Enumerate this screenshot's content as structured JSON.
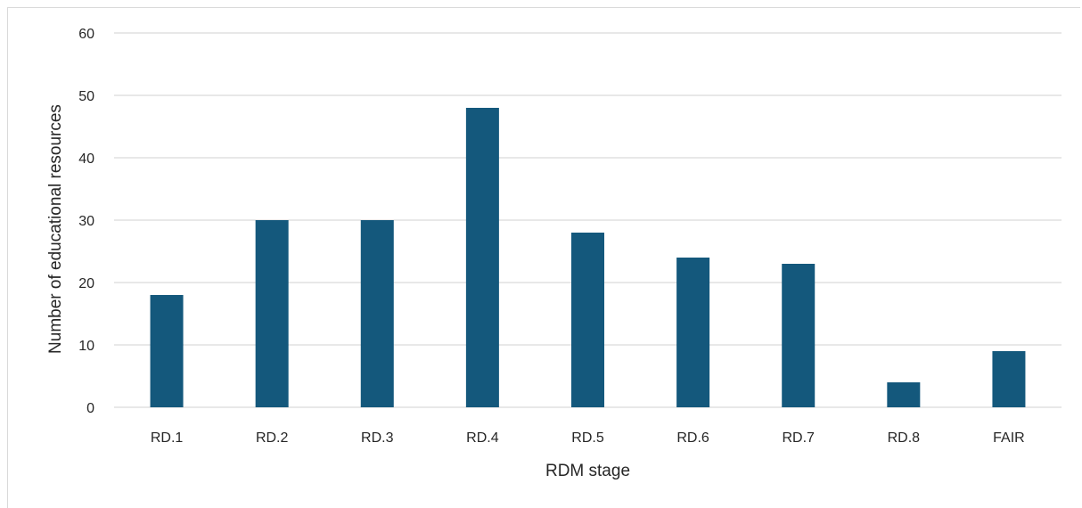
{
  "chart_data": {
    "type": "bar",
    "title": "",
    "xlabel": "RDM stage",
    "ylabel": "Number of educational resources",
    "categories": [
      "RD.1",
      "RD.2",
      "RD.3",
      "RD.4",
      "RD.5",
      "RD.6",
      "RD.7",
      "RD.8",
      "FAIR"
    ],
    "values": [
      18,
      30,
      30,
      48,
      28,
      24,
      23,
      4,
      9
    ],
    "ylim": [
      0,
      60
    ],
    "yticks": [
      0,
      10,
      20,
      30,
      40,
      50,
      60
    ],
    "grid": true,
    "legend": "none",
    "colors": {
      "bar": "#14587c",
      "grid": "#d9d9d9",
      "text": "#262626"
    }
  }
}
